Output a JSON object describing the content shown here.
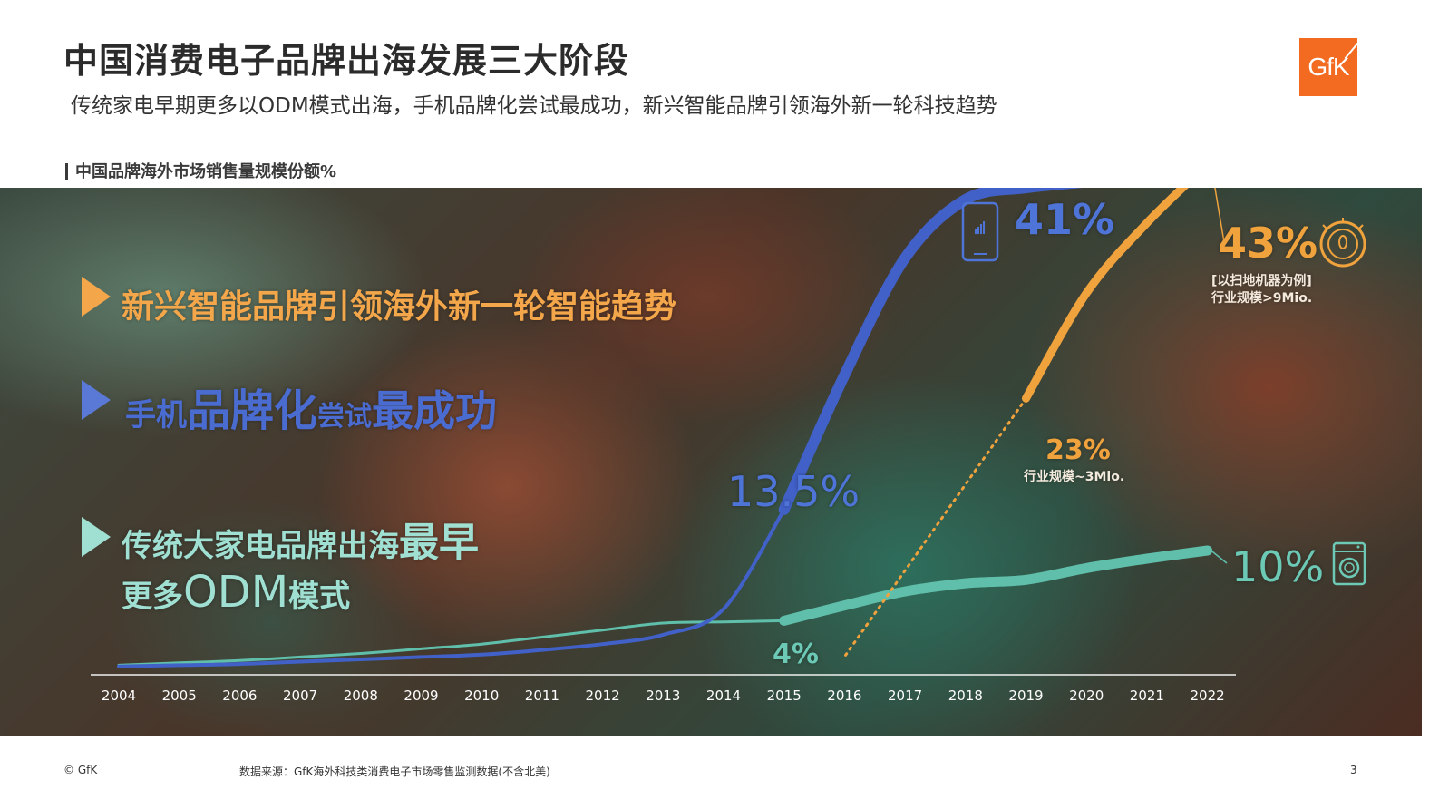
{
  "header": {
    "title": "中国消费电子品牌出海发展三大阶段",
    "subtitle": "传统家电早期更多以ODM模式出海，手机品牌化尝试最成功，新兴智能品牌引领海外新一轮科技趋势",
    "logo_text": "GfK",
    "logo_color": "#f26b21"
  },
  "section_label": "中国品牌海外市场销售量规模份额%",
  "stages": {
    "smart": {
      "text": "新兴智能品牌引领海外新一轮智能趋势",
      "color": "#f3a64a"
    },
    "phone": {
      "part1": "手机",
      "part2": "品牌化",
      "part3": "尝试",
      "part4": "最成功",
      "color": "#4a6bd0"
    },
    "appliance": {
      "line1_part1": "传统大家电品牌出海",
      "line1_part2": "最早",
      "line2_part1": "更多",
      "line2_part2": "ODM",
      "line2_part3": "模式",
      "color": "#9fe0d2"
    }
  },
  "annotations": {
    "phone_peak": "41%",
    "phone_mid": "13.5%",
    "vacuum_end": "43%",
    "vacuum_end_note1": "[以扫地机器为例]",
    "vacuum_end_note2": "行业规模>9Mio.",
    "vacuum_start": "23%",
    "vacuum_start_note": "行业规模~3Mio.",
    "appliance_start": "4%",
    "appliance_end": "10%"
  },
  "icons": {
    "phone": "smartphone-icon",
    "vacuum": "robot-vacuum-icon",
    "washer": "washing-machine-icon"
  },
  "chart_data": {
    "type": "line",
    "x": [
      "2004",
      "2005",
      "2006",
      "2007",
      "2008",
      "2009",
      "2010",
      "2011",
      "2012",
      "2013",
      "2014",
      "2015",
      "2016",
      "2017",
      "2018",
      "2019",
      "2020",
      "2021",
      "2022"
    ],
    "ylim": [
      0,
      48
    ],
    "grid": false,
    "legend": "none",
    "series": [
      {
        "color": "#4161c8",
        "values": [
          0.1,
          0.2,
          0.3,
          0.5,
          0.7,
          0.9,
          1.1,
          1.5,
          2.0,
          2.8,
          5.0,
          13.5,
          25.0,
          35.0,
          40.0,
          41.0,
          41.5,
          42.0,
          42.5
        ]
      },
      {
        "color": "#f0a23d",
        "values": [
          null,
          null,
          null,
          null,
          null,
          null,
          null,
          null,
          null,
          null,
          null,
          null,
          null,
          null,
          null,
          23,
          32,
          38,
          43
        ]
      },
      {
        "color": "#5fbfab",
        "values": [
          0.2,
          0.4,
          0.6,
          0.9,
          1.2,
          1.6,
          2.0,
          2.6,
          3.2,
          3.8,
          3.9,
          4.0,
          5.3,
          6.5,
          7.2,
          7.5,
          8.5,
          9.3,
          10.0
        ]
      }
    ]
  }
}
